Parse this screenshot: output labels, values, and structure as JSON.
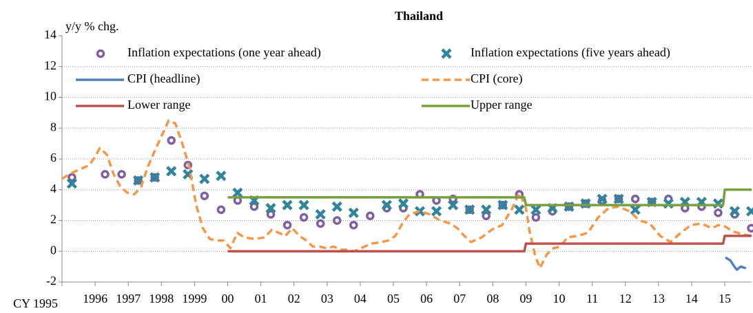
{
  "chart_data": {
    "type": "line",
    "title": "Thailand",
    "y_label": "y/y % chg.",
    "xlim": [
      1995,
      2015.81
    ],
    "xticks": [
      {
        "value": 1995,
        "label": "CY 1995"
      },
      1996,
      1997,
      1998,
      1999,
      {
        "value": 2000,
        "label": "00"
      },
      {
        "value": 2001,
        "label": "01"
      },
      {
        "value": 2002,
        "label": "02"
      },
      {
        "value": 2003,
        "label": "03"
      },
      {
        "value": 2004,
        "label": "04"
      },
      {
        "value": 2005,
        "label": "05"
      },
      {
        "value": 2006,
        "label": "06"
      },
      {
        "value": 2007,
        "label": "07"
      },
      {
        "value": 2008,
        "label": "08"
      },
      {
        "value": 2009,
        "label": "09"
      },
      {
        "value": 2010,
        "label": "10"
      },
      {
        "value": 2011,
        "label": "11"
      },
      {
        "value": 2012,
        "label": "12"
      },
      {
        "value": 2013,
        "label": "13"
      },
      {
        "value": 2014,
        "label": "14"
      },
      {
        "value": 2015,
        "label": "15"
      }
    ],
    "ylim": [
      -2,
      14
    ],
    "yticks": [
      -2,
      0,
      2,
      4,
      6,
      8,
      10,
      12,
      14
    ],
    "grid": true,
    "series": [
      {
        "name": "Inflation expectations (one year ahead)",
        "type": "scatter",
        "marker": "circle",
        "color": "#7f5f9f",
        "x": [
          1995.3,
          1996.3,
          1996.8,
          1997.3,
          1997.8,
          1998.3,
          1998.8,
          1999.3,
          1999.8,
          2000.3,
          2000.8,
          2001.3,
          2001.8,
          2002.3,
          2002.8,
          2003.3,
          2003.8,
          2004.3,
          2004.8,
          2005.3,
          2005.8,
          2006.3,
          2006.8,
          2007.3,
          2007.8,
          2008.3,
          2008.8,
          2009.3,
          2009.8,
          2010.3,
          2010.8,
          2011.3,
          2011.8,
          2012.3,
          2012.8,
          2013.3,
          2013.8,
          2014.3,
          2014.8,
          2015.3,
          2015.8
        ],
        "values": [
          4.8,
          5.0,
          5.0,
          4.6,
          4.8,
          7.2,
          5.6,
          3.6,
          2.7,
          3.3,
          2.9,
          2.4,
          1.7,
          2.2,
          1.8,
          2.0,
          1.7,
          2.3,
          2.8,
          2.8,
          3.7,
          3.3,
          3.4,
          2.7,
          2.3,
          3.0,
          3.7,
          2.2,
          2.6,
          2.9,
          3.1,
          3.3,
          3.4,
          3.4,
          3.2,
          3.4,
          2.8,
          2.9,
          2.5,
          2.4,
          1.5
        ]
      },
      {
        "name": "Inflation expectations (five years ahead)",
        "type": "scatter",
        "marker": "x",
        "color": "#31849b",
        "x": [
          1995.3,
          1997.3,
          1997.8,
          1998.3,
          1998.8,
          1999.3,
          1999.8,
          2000.3,
          2000.8,
          2001.3,
          2001.8,
          2002.3,
          2002.8,
          2003.3,
          2003.8,
          2004.8,
          2005.3,
          2005.8,
          2006.3,
          2006.8,
          2007.3,
          2007.8,
          2008.3,
          2008.8,
          2009.3,
          2009.8,
          2010.3,
          2010.8,
          2011.3,
          2011.8,
          2012.3,
          2012.8,
          2013.3,
          2013.8,
          2014.3,
          2014.8,
          2015.3,
          2015.8
        ],
        "values": [
          4.4,
          4.6,
          4.8,
          5.2,
          5.0,
          4.7,
          4.9,
          3.8,
          3.3,
          2.8,
          3.0,
          3.0,
          2.4,
          2.9,
          2.5,
          3.0,
          3.1,
          2.6,
          2.6,
          3.0,
          2.7,
          2.7,
          3.0,
          2.7,
          2.7,
          2.8,
          2.9,
          3.1,
          3.4,
          3.4,
          2.7,
          3.2,
          3.1,
          3.2,
          3.2,
          3.1,
          2.6,
          2.6
        ]
      },
      {
        "name": "CPI (headline)",
        "type": "line",
        "dash": false,
        "color": "#4f81bd",
        "x": [
          2015.02,
          2015.17,
          2015.29,
          2015.37,
          2015.48,
          2015.64
        ],
        "values": [
          -0.4,
          -0.6,
          -1.0,
          -1.2,
          -1.0,
          -1.1
        ]
      },
      {
        "name": "CPI (core)",
        "type": "line",
        "dash": true,
        "color": "#f79646",
        "x": [
          1995.0,
          1995.21,
          1995.41,
          1995.62,
          1995.83,
          1996.04,
          1996.14,
          1996.35,
          1996.56,
          1996.76,
          1996.97,
          1997.18,
          1997.39,
          1997.59,
          1997.9,
          1998.22,
          1998.42,
          1998.63,
          1998.84,
          1999.05,
          1999.25,
          1999.46,
          1999.67,
          1999.88,
          2000.08,
          2000.29,
          2000.5,
          2000.81,
          2001.12,
          2001.33,
          2001.54,
          2001.74,
          2001.95,
          2002.16,
          2002.37,
          2002.57,
          2002.78,
          2002.99,
          2003.2,
          2003.4,
          2003.61,
          2003.82,
          2004.02,
          2004.34,
          2004.65,
          2004.85,
          2005.06,
          2005.27,
          2005.48,
          2005.79,
          2006.1,
          2006.41,
          2006.72,
          2006.93,
          2007.14,
          2007.34,
          2007.66,
          2007.97,
          2008.28,
          2008.59,
          2008.8,
          2009.0,
          2009.11,
          2009.27,
          2009.42,
          2009.63,
          2009.83,
          2010.04,
          2010.25,
          2010.56,
          2010.87,
          2011.18,
          2011.49,
          2011.8,
          2012.12,
          2012.43,
          2012.74,
          2013.05,
          2013.36,
          2013.67,
          2013.98,
          2014.29,
          2014.61,
          2014.81,
          2015.02,
          2015.23,
          2015.54,
          2015.81
        ],
        "values": [
          4.7,
          5.0,
          5.2,
          5.4,
          5.6,
          6.3,
          6.7,
          6.3,
          5.0,
          4.2,
          3.8,
          3.7,
          4.2,
          5.5,
          7.0,
          8.5,
          8.3,
          7.0,
          5.5,
          3.0,
          1.5,
          0.8,
          0.7,
          0.7,
          0.2,
          1.2,
          0.9,
          0.8,
          0.9,
          1.4,
          1.2,
          1.0,
          1.5,
          1.0,
          0.7,
          0.3,
          0.3,
          0.2,
          0.3,
          0.1,
          0.1,
          0.0,
          0.2,
          0.5,
          0.6,
          0.7,
          1.0,
          1.8,
          2.4,
          2.6,
          2.4,
          2.0,
          1.8,
          1.5,
          1.0,
          0.6,
          0.9,
          1.4,
          1.7,
          2.8,
          3.8,
          2.8,
          1.3,
          -0.2,
          -1.1,
          -0.2,
          0.2,
          0.3,
          0.9,
          1.0,
          1.2,
          2.2,
          2.8,
          2.9,
          2.6,
          2.0,
          1.8,
          1.0,
          0.6,
          1.2,
          1.7,
          1.8,
          1.5,
          1.7,
          1.6,
          1.3,
          1.1,
          1.0
        ]
      },
      {
        "name": "Lower range",
        "type": "line",
        "dash": false,
        "color": "#c0504d",
        "x": [
          2000.0,
          2008.95,
          2009.0,
          2014.95,
          2015.0,
          2015.81
        ],
        "values": [
          0,
          0,
          0.5,
          0.5,
          1,
          1
        ]
      },
      {
        "name": "Upper range",
        "type": "line",
        "dash": false,
        "color": "#77a03c",
        "x": [
          2000.0,
          2008.95,
          2009.0,
          2014.95,
          2015.0,
          2015.81
        ],
        "values": [
          3.5,
          3.5,
          3.0,
          3.0,
          4,
          4
        ]
      }
    ]
  }
}
